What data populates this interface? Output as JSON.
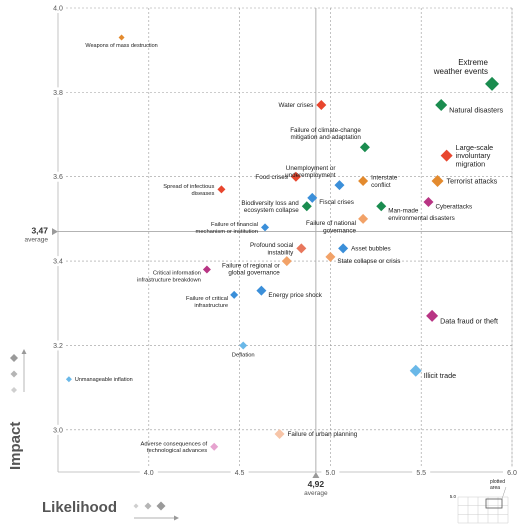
{
  "chart_data": {
    "type": "scatter",
    "xlabel": "Likelihood",
    "ylabel": "Impact",
    "xlim": [
      3.5,
      6.0
    ],
    "ylim": [
      2.9,
      4.0
    ],
    "x_ticks": [
      "4.0",
      "4.5",
      "5.0",
      "5.5",
      "6.0"
    ],
    "x_tick_values": [
      4.0,
      4.5,
      5.0,
      5.5,
      6.0
    ],
    "y_ticks": [
      "4.0",
      "3.8",
      "3.6",
      "3.4",
      "3.2",
      "3.0"
    ],
    "y_tick_values": [
      4.0,
      3.8,
      3.6,
      3.4,
      3.2,
      3.0
    ],
    "x_average": {
      "value": "4,92",
      "label": "average",
      "at": 4.92
    },
    "y_average": {
      "value": "3,47",
      "label": "average",
      "at": 3.47
    },
    "legend_inset": {
      "corner_number": "5.0",
      "label": "plotted area"
    },
    "points": [
      {
        "name": "Weapons of mass destruction",
        "x": 3.85,
        "y": 3.93,
        "color": "#e38a2e",
        "size": "xs",
        "label_lines": [
          "Weapons of mass destruction"
        ],
        "label_pos": "below"
      },
      {
        "name": "Extreme weather events",
        "x": 5.89,
        "y": 3.82,
        "color": "#1a8c4f",
        "size": "xl",
        "label_lines": [
          "Extreme",
          "weather events"
        ],
        "label_pos": "above-left"
      },
      {
        "name": "Natural disasters",
        "x": 5.61,
        "y": 3.77,
        "color": "#1a8c4f",
        "size": "l",
        "label_lines": [
          "Natural disasters"
        ],
        "label_pos": "right-below"
      },
      {
        "name": "Water crises",
        "x": 4.95,
        "y": 3.77,
        "color": "#e8462e",
        "size": "m",
        "label_lines": [
          "Water crises"
        ],
        "label_pos": "left"
      },
      {
        "name": "Failure of climate-change mitigation and adaptation",
        "x": 5.19,
        "y": 3.67,
        "color": "#1a8c4f",
        "size": "m",
        "label_lines": [
          "Failure of climate-change",
          "mitigation and adaptation"
        ],
        "label_pos": "above-left"
      },
      {
        "name": "Large-scale involuntary migration",
        "x": 5.64,
        "y": 3.65,
        "color": "#e8462e",
        "size": "l",
        "label_lines": [
          "Large-scale",
          "involuntary",
          "migration"
        ],
        "label_pos": "right"
      },
      {
        "name": "Food crises",
        "x": 4.81,
        "y": 3.6,
        "color": "#e8462e",
        "size": "m",
        "label_lines": [
          "Food crises"
        ],
        "label_pos": "left"
      },
      {
        "name": "Spread of infectious diseases",
        "x": 4.4,
        "y": 3.57,
        "color": "#e8462e",
        "size": "s",
        "label_lines": [
          "Spread of infectious",
          "diseases"
        ],
        "label_pos": "left"
      },
      {
        "name": "Terrorist attacks",
        "x": 5.59,
        "y": 3.59,
        "color": "#e38a2e",
        "size": "l",
        "label_lines": [
          "Terrorist attacks"
        ],
        "label_pos": "right"
      },
      {
        "name": "Interstate conflict",
        "x": 5.18,
        "y": 3.59,
        "color": "#e38a2e",
        "size": "m",
        "label_lines": [
          "Interstate",
          "conflict"
        ],
        "label_pos": "right"
      },
      {
        "name": "Unemployment or underemployment",
        "x": 5.05,
        "y": 3.58,
        "color": "#3b8fd9",
        "size": "m",
        "label_lines": [
          "Unemployment or",
          "underemployment"
        ],
        "label_pos": "above-left"
      },
      {
        "name": "Fiscal crises",
        "x": 4.9,
        "y": 3.55,
        "color": "#3b8fd9",
        "size": "m",
        "label_lines": [
          "Fiscal crises"
        ],
        "label_pos": "right-below"
      },
      {
        "name": "Biodiversity loss and ecosystem collapse",
        "x": 4.87,
        "y": 3.53,
        "color": "#1a8c4f",
        "size": "m",
        "label_lines": [
          "Biodiversity loss and",
          "ecosystem collapse"
        ],
        "label_pos": "left"
      },
      {
        "name": "Cyberattacks",
        "x": 5.54,
        "y": 3.54,
        "color": "#b83584",
        "size": "m",
        "label_lines": [
          "Cyberattacks"
        ],
        "label_pos": "right-below"
      },
      {
        "name": "Man-made environmental disasters",
        "x": 5.28,
        "y": 3.53,
        "color": "#1a8c4f",
        "size": "m",
        "label_lines": [
          "Man-made",
          "environmental disasters"
        ],
        "label_pos": "right-below"
      },
      {
        "name": "Failure of national governance",
        "x": 5.18,
        "y": 3.5,
        "color": "#f2a268",
        "size": "m",
        "label_lines": [
          "Failure of national",
          "governance"
        ],
        "label_pos": "left-below"
      },
      {
        "name": "Failure of financial mechanism or institution",
        "x": 4.64,
        "y": 3.48,
        "color": "#3b8fd9",
        "size": "s",
        "label_lines": [
          "Failure of financial",
          "mechanism or institution"
        ],
        "label_pos": "left"
      },
      {
        "name": "Profound social instability",
        "x": 4.84,
        "y": 3.43,
        "color": "#e8775c",
        "size": "m",
        "label_lines": [
          "Profound social",
          "instability"
        ],
        "label_pos": "left"
      },
      {
        "name": "Asset bubbles",
        "x": 5.07,
        "y": 3.43,
        "color": "#3b8fd9",
        "size": "m",
        "label_lines": [
          "Asset bubbles"
        ],
        "label_pos": "right"
      },
      {
        "name": "State collapse or crisis",
        "x": 5.0,
        "y": 3.41,
        "color": "#f2a268",
        "size": "m",
        "label_lines": [
          "State collapse or crisis"
        ],
        "label_pos": "right-below"
      },
      {
        "name": "Failure of regional or global governance",
        "x": 4.76,
        "y": 3.4,
        "color": "#f2a268",
        "size": "m",
        "label_lines": [
          "Failure of regional or",
          "global governance"
        ],
        "label_pos": "left-below"
      },
      {
        "name": "Critical information infrastructure breakdown",
        "x": 4.32,
        "y": 3.38,
        "color": "#b83584",
        "size": "s",
        "label_lines": [
          "Critical information",
          "infrastructure breakdown"
        ],
        "label_pos": "left-below"
      },
      {
        "name": "Energy price shock",
        "x": 4.62,
        "y": 3.33,
        "color": "#3b8fd9",
        "size": "m",
        "label_lines": [
          "Energy price shock"
        ],
        "label_pos": "right-below"
      },
      {
        "name": "Failure of critical infrastructure",
        "x": 4.47,
        "y": 3.32,
        "color": "#3b8fd9",
        "size": "s",
        "label_lines": [
          "Failure of critical",
          "infrastructure"
        ],
        "label_pos": "left-below"
      },
      {
        "name": "Data fraud or theft",
        "x": 5.56,
        "y": 3.27,
        "color": "#b83584",
        "size": "l",
        "label_lines": [
          "Data fraud or theft"
        ],
        "label_pos": "right-below"
      },
      {
        "name": "Deflation",
        "x": 4.52,
        "y": 3.2,
        "color": "#6ab8e8",
        "size": "s",
        "label_lines": [
          "Deflation"
        ],
        "label_pos": "below"
      },
      {
        "name": "Unmanageable inflation",
        "x": 3.56,
        "y": 3.12,
        "color": "#6ab8e8",
        "size": "xs",
        "label_lines": [
          "Unmanageable inflation"
        ],
        "label_pos": "right"
      },
      {
        "name": "Illicit trade",
        "x": 5.47,
        "y": 3.14,
        "color": "#6ab8e8",
        "size": "l",
        "label_lines": [
          "Illicit trade"
        ],
        "label_pos": "right-below"
      },
      {
        "name": "Failure of urban planning",
        "x": 4.72,
        "y": 2.99,
        "color": "#f7c5a8",
        "size": "m",
        "label_lines": [
          "Failure of urban planning"
        ],
        "label_pos": "right"
      },
      {
        "name": "Adverse consequences of technological advances",
        "x": 4.36,
        "y": 2.96,
        "color": "#e6a3cf",
        "size": "s",
        "label_lines": [
          "Adverse consequences of",
          "technological advances"
        ],
        "label_pos": "left"
      }
    ]
  }
}
